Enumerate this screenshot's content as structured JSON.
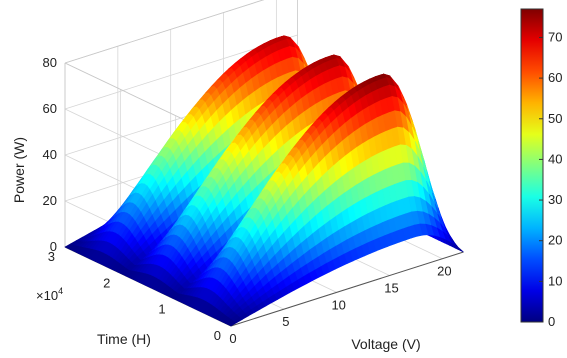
{
  "chart_data": {
    "type": "surface3d",
    "title": "",
    "xlabel": "Voltage (V)",
    "ylabel": "Time (H)",
    "zlabel": "Power (W)",
    "y_multiplier_label": "×10",
    "y_multiplier_exp": "4",
    "xlim": [
      0,
      22
    ],
    "ylim": [
      0,
      30000
    ],
    "zlim": [
      0,
      80
    ],
    "x_ticks": [
      0,
      5,
      10,
      15,
      20
    ],
    "y_ticks": [
      0,
      1,
      2,
      3
    ],
    "z_ticks": [
      0,
      20,
      40,
      60,
      80
    ],
    "grid": true,
    "colormap": "jet",
    "colorbar": {
      "placement": "right",
      "range": [
        0,
        77
      ],
      "ticks": [
        0,
        10,
        20,
        30,
        40,
        50,
        60,
        70
      ]
    },
    "ridges": [
      {
        "time": 6000,
        "peak_power": 77,
        "peak_voltage": 17.5
      },
      {
        "time": 15000,
        "peak_power": 75,
        "peak_voltage": 17.5
      },
      {
        "time": 24000,
        "peak_power": 73,
        "peak_voltage": 17.5
      }
    ]
  }
}
